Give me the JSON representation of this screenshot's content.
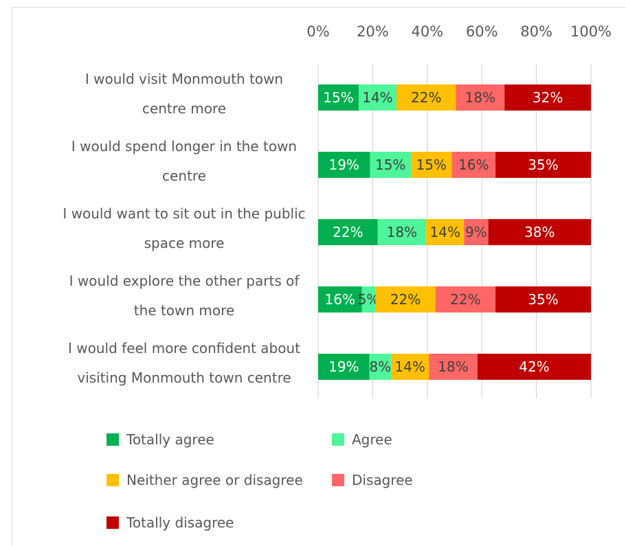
{
  "chart_data": {
    "type": "bar",
    "orientation": "horizontal",
    "stacked": true,
    "percent_stacked": true,
    "xlim": [
      0,
      100
    ],
    "x_ticks": [
      "0%",
      "20%",
      "40%",
      "60%",
      "80%",
      "100%"
    ],
    "grid": true,
    "legend_position": "bottom",
    "categories": [
      [
        "I would visit Monmouth town",
        "centre more"
      ],
      [
        "I would spend longer in the town",
        "centre"
      ],
      [
        "I would want to sit out in the public",
        "space more"
      ],
      [
        "I would explore the other parts of",
        "the town more"
      ],
      [
        "I would feel more confident about",
        "visiting Monmouth town centre"
      ]
    ],
    "series": [
      {
        "name": "Totally agree",
        "color": "#00b050",
        "label_color": "#ffffff",
        "values": [
          15,
          19,
          22,
          16,
          19
        ]
      },
      {
        "name": "Agree",
        "color": "#4ff59a",
        "label_color": "#404040",
        "values": [
          14,
          15,
          18,
          5,
          8
        ]
      },
      {
        "name": "Neither agree or disagree",
        "color": "#ffc000",
        "label_color": "#404040",
        "values": [
          22,
          15,
          14,
          22,
          14
        ]
      },
      {
        "name": "Disagree",
        "color": "#ff6666",
        "label_color": "#404040",
        "values": [
          18,
          16,
          9,
          22,
          18
        ]
      },
      {
        "name": "Totally disagree",
        "color": "#c00000",
        "label_color": "#ffffff",
        "values": [
          32,
          35,
          38,
          35,
          42
        ]
      }
    ],
    "value_labels": [
      [
        "15%",
        "14%",
        "22%",
        "18%",
        "32%"
      ],
      [
        "19%",
        "15%",
        "15%",
        "16%",
        "35%"
      ],
      [
        "22%",
        "18%",
        "14%",
        "9%",
        "38%"
      ],
      [
        "16%",
        "5%",
        "22%",
        "22%",
        "35%"
      ],
      [
        "19%",
        "8%",
        "14%",
        "18%",
        "42%"
      ]
    ]
  }
}
